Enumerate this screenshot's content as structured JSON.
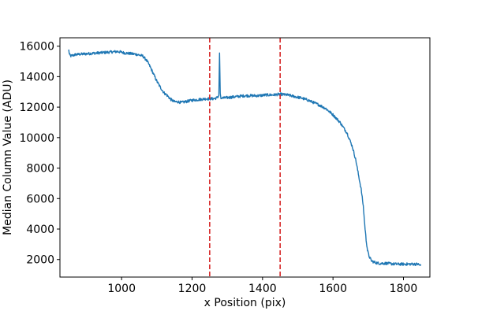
{
  "chart_data": {
    "type": "line",
    "title": "",
    "xlabel": "x Position (pix)",
    "ylabel": "Median Column Value (ADU)",
    "xlim": [
      825,
      1875
    ],
    "ylim": [
      850,
      16550
    ],
    "xticks": [
      1000,
      1200,
      1400,
      1600,
      1800
    ],
    "yticks": [
      2000,
      4000,
      6000,
      8000,
      10000,
      12000,
      14000,
      16000
    ],
    "grid": false,
    "legend": "none",
    "colors": {
      "series": "#1f77b4",
      "vlines": "#d62728",
      "axes": "#000000"
    },
    "series": [
      {
        "x": [
          850,
          852,
          855,
          870,
          900,
          930,
          960,
          990,
          1010,
          1030,
          1045,
          1060,
          1070,
          1080,
          1090,
          1100,
          1110,
          1120,
          1130,
          1140,
          1150,
          1160,
          1170,
          1180,
          1190,
          1200,
          1220,
          1240,
          1260,
          1270,
          1276,
          1278,
          1280,
          1282,
          1285,
          1290,
          1310,
          1330,
          1350,
          1370,
          1390,
          1410,
          1430,
          1450,
          1470,
          1490,
          1510,
          1530,
          1550,
          1560,
          1580,
          1600,
          1620,
          1640,
          1655,
          1665,
          1672,
          1680,
          1686,
          1690,
          1694,
          1698,
          1702,
          1706,
          1710,
          1720,
          1730,
          1750,
          1780,
          1810,
          1840,
          1850
        ],
        "y": [
          15750,
          15450,
          15350,
          15450,
          15500,
          15550,
          15600,
          15650,
          15550,
          15500,
          15450,
          15350,
          15100,
          14700,
          14200,
          13700,
          13300,
          12950,
          12750,
          12500,
          12350,
          12350,
          12300,
          12350,
          12400,
          12450,
          12500,
          12550,
          12550,
          12600,
          12750,
          15550,
          12900,
          12550,
          12600,
          12600,
          12650,
          12700,
          12750,
          12750,
          12750,
          12800,
          12800,
          12850,
          12800,
          12700,
          12600,
          12450,
          12250,
          12150,
          11900,
          11500,
          11000,
          10300,
          9400,
          8500,
          7600,
          6600,
          5500,
          4300,
          3300,
          2600,
          2250,
          2050,
          1900,
          1800,
          1750,
          1750,
          1700,
          1700,
          1700,
          1600
        ]
      }
    ],
    "vlines": [
      1250,
      1450
    ]
  }
}
